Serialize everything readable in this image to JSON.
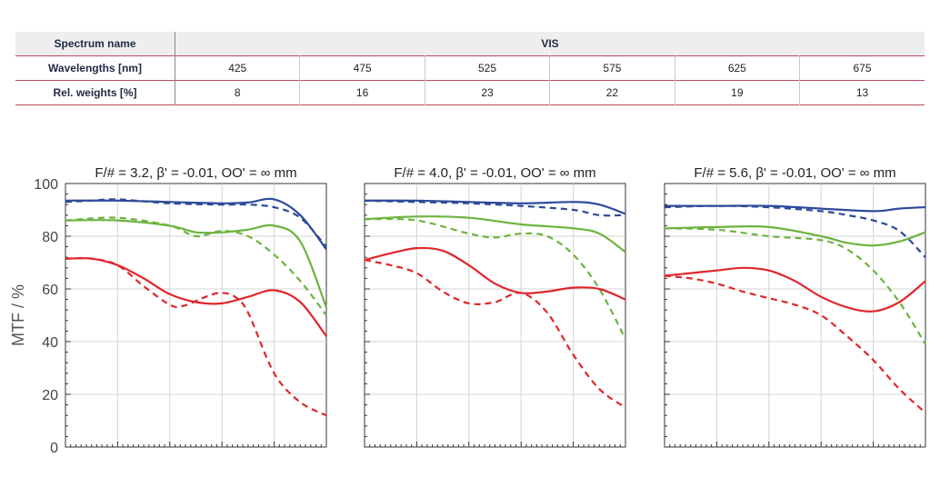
{
  "table": {
    "spectrum_label": "Spectrum name",
    "spectrum_value": "VIS",
    "wavelengths_label": "Wavelengths [nm]",
    "wavelengths": [
      "425",
      "475",
      "525",
      "575",
      "625",
      "675"
    ],
    "weights_label": "Rel. weights [%]",
    "weights": [
      "8",
      "16",
      "23",
      "22",
      "19",
      "13"
    ]
  },
  "chart_data": {
    "type": "line",
    "ylabel": "MTF / %",
    "ylim": [
      0,
      100
    ],
    "yticks": [
      "0",
      "20",
      "40",
      "60",
      "80",
      "100"
    ],
    "x_range": [
      0,
      1
    ],
    "grid": true,
    "line_styles": {
      "tangential": "solid",
      "sagittal": "dashed"
    },
    "colors": {
      "blue": "#2d4a9a",
      "green": "#6cb33f",
      "red": "#e0262b"
    },
    "panels": [
      {
        "title": "F/# = 3.2, β' = -0.01, OO' = ∞ mm",
        "series": [
          {
            "color": "blue",
            "style": "solid",
            "x": [
              0,
              0.2,
              0.4,
              0.6,
              0.7,
              0.8,
              0.9,
              1.0
            ],
            "y": [
              93.5,
              93.5,
              93,
              92.5,
              92.8,
              94,
              88,
              75
            ]
          },
          {
            "color": "blue",
            "style": "dashed",
            "x": [
              0,
              0.1,
              0.2,
              0.4,
              0.6,
              0.7,
              0.8,
              0.9,
              1.0
            ],
            "y": [
              93,
              93.5,
              94,
              92.5,
              92,
              92,
              91,
              87,
              76
            ]
          },
          {
            "color": "green",
            "style": "solid",
            "x": [
              0,
              0.2,
              0.4,
              0.5,
              0.6,
              0.7,
              0.8,
              0.9,
              1.0
            ],
            "y": [
              86,
              86,
              84,
              81.5,
              81.5,
              82.5,
              84,
              78,
              53
            ]
          },
          {
            "color": "green",
            "style": "dashed",
            "x": [
              0,
              0.2,
              0.4,
              0.5,
              0.6,
              0.7,
              0.8,
              0.9,
              1.0
            ],
            "y": [
              86,
              87,
              84,
              80,
              82,
              80,
              73,
              63,
              50
            ]
          },
          {
            "color": "red",
            "style": "solid",
            "x": [
              0,
              0.1,
              0.2,
              0.3,
              0.4,
              0.5,
              0.6,
              0.7,
              0.8,
              0.9,
              1.0
            ],
            "y": [
              71.5,
              71.5,
              69,
              64,
              58,
              55,
              54.5,
              57,
              59.5,
              55,
              42
            ]
          },
          {
            "color": "red",
            "style": "dashed",
            "x": [
              0,
              0.1,
              0.2,
              0.3,
              0.4,
              0.45,
              0.55,
              0.6,
              0.65,
              0.7,
              0.8,
              0.9,
              1.0
            ],
            "y": [
              71.5,
              71.5,
              69,
              61,
              54,
              53.5,
              57.5,
              58.5,
              57,
              51,
              28,
              17,
              12
            ]
          }
        ]
      },
      {
        "title": "F/# = 4.0, β' = -0.01, OO' = ∞ mm",
        "series": [
          {
            "color": "blue",
            "style": "solid",
            "x": [
              0,
              0.2,
              0.4,
              0.6,
              0.8,
              0.9,
              1.0
            ],
            "y": [
              93.5,
              93.5,
              93,
              92.5,
              93,
              92,
              88.5
            ]
          },
          {
            "color": "blue",
            "style": "dashed",
            "x": [
              0,
              0.2,
              0.4,
              0.6,
              0.8,
              0.9,
              1.0
            ],
            "y": [
              93.5,
              93,
              92.5,
              91.5,
              90,
              88,
              88
            ]
          },
          {
            "color": "green",
            "style": "solid",
            "x": [
              0,
              0.2,
              0.4,
              0.6,
              0.8,
              0.9,
              1.0
            ],
            "y": [
              86.5,
              87.5,
              87,
              84.5,
              83,
              81,
              74
            ]
          },
          {
            "color": "green",
            "style": "dashed",
            "x": [
              0,
              0.2,
              0.4,
              0.5,
              0.6,
              0.7,
              0.8,
              0.9,
              1.0
            ],
            "y": [
              86.5,
              86,
              81,
              79.5,
              81,
              80,
              73,
              60,
              41
            ]
          },
          {
            "color": "red",
            "style": "solid",
            "x": [
              0,
              0.1,
              0.2,
              0.3,
              0.4,
              0.5,
              0.6,
              0.7,
              0.8,
              0.9,
              1.0
            ],
            "y": [
              71,
              73.5,
              75.5,
              74.5,
              69,
              62,
              58.5,
              59,
              60.5,
              60,
              56
            ]
          },
          {
            "color": "red",
            "style": "dashed",
            "x": [
              0,
              0.1,
              0.2,
              0.3,
              0.4,
              0.5,
              0.6,
              0.7,
              0.8,
              0.9,
              1.0
            ],
            "y": [
              71,
              69,
              66,
              59,
              54.5,
              55,
              58.5,
              51,
              35,
              22,
              15
            ]
          }
        ]
      },
      {
        "title": "F/# = 5.6, β' = -0.01, OO' = ∞ mm",
        "series": [
          {
            "color": "blue",
            "style": "solid",
            "x": [
              0,
              0.2,
              0.4,
              0.6,
              0.8,
              0.9,
              1.0
            ],
            "y": [
              91.5,
              91.5,
              91.5,
              90.5,
              89.5,
              90.5,
              91
            ]
          },
          {
            "color": "blue",
            "style": "dashed",
            "x": [
              0,
              0.2,
              0.4,
              0.6,
              0.7,
              0.8,
              0.9,
              1.0
            ],
            "y": [
              91,
              91.5,
              91,
              89.5,
              88,
              86,
              82,
              72
            ]
          },
          {
            "color": "green",
            "style": "solid",
            "x": [
              0,
              0.2,
              0.4,
              0.6,
              0.7,
              0.8,
              0.9,
              1.0
            ],
            "y": [
              83,
              83.5,
              83.5,
              80,
              77.5,
              76.5,
              78,
              81.5
            ]
          },
          {
            "color": "green",
            "style": "dashed",
            "x": [
              0,
              0.2,
              0.4,
              0.6,
              0.7,
              0.8,
              0.9,
              1.0
            ],
            "y": [
              83,
              82.5,
              80,
              78.5,
              75,
              67,
              55,
              39
            ]
          },
          {
            "color": "red",
            "style": "solid",
            "x": [
              0,
              0.1,
              0.2,
              0.3,
              0.4,
              0.5,
              0.6,
              0.7,
              0.8,
              0.9,
              1.0
            ],
            "y": [
              65,
              66,
              67,
              68,
              67,
              63,
              57,
              53,
              51.5,
              55,
              63
            ]
          },
          {
            "color": "red",
            "style": "dashed",
            "x": [
              0,
              0.1,
              0.2,
              0.3,
              0.4,
              0.5,
              0.6,
              0.7,
              0.8,
              0.9,
              1.0
            ],
            "y": [
              65,
              64,
              62,
              59,
              56.5,
              54,
              50,
              42,
              33,
              22,
              13
            ]
          }
        ]
      }
    ]
  }
}
